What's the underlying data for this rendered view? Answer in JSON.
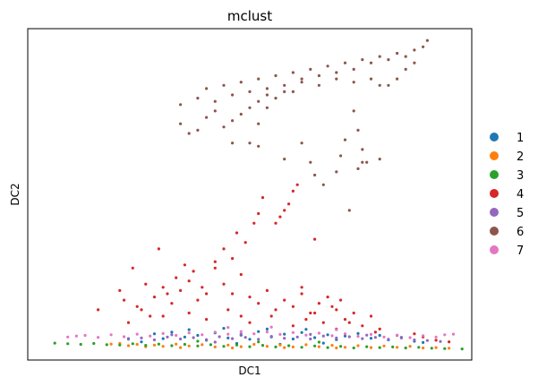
{
  "chart_data": {
    "type": "scatter",
    "title": "mclust",
    "xlabel": "DC1",
    "ylabel": "DC2",
    "xlim": [
      0,
      100
    ],
    "ylim": [
      0,
      100
    ],
    "grid": false,
    "ticks": false,
    "legend": {
      "position": "right",
      "entries": [
        {
          "label": "1",
          "color": "#1f77b4"
        },
        {
          "label": "2",
          "color": "#ff7f0e"
        },
        {
          "label": "3",
          "color": "#2ca02c"
        },
        {
          "label": "4",
          "color": "#d62728"
        },
        {
          "label": "5",
          "color": "#9467bd"
        },
        {
          "label": "6",
          "color": "#8c564b"
        },
        {
          "label": "7",
          "color": "#e377c2"
        }
      ]
    },
    "series": [
      {
        "name": "1",
        "color": "#1f77b4",
        "points": [
          [
            28,
            6.5
          ],
          [
            30,
            5
          ],
          [
            32,
            7
          ],
          [
            35,
            5.5
          ],
          [
            38,
            6
          ],
          [
            40,
            4.5
          ],
          [
            42,
            6.8
          ],
          [
            45,
            5.2
          ],
          [
            48,
            6.1
          ],
          [
            50,
            4.8
          ],
          [
            52,
            7.2
          ],
          [
            55,
            5.5
          ],
          [
            58,
            6.4
          ],
          [
            60,
            4.9
          ],
          [
            62,
            6.9
          ],
          [
            65,
            5.3
          ],
          [
            68,
            6.2
          ],
          [
            70,
            4.7
          ],
          [
            72,
            5.8
          ],
          [
            75,
            6.6
          ],
          [
            78,
            5.1
          ],
          [
            80,
            6
          ],
          [
            82,
            4.6
          ],
          [
            85,
            5.4
          ],
          [
            88,
            4.2
          ],
          [
            90,
            3.8
          ],
          [
            25,
            4
          ],
          [
            22,
            5
          ],
          [
            36,
            7.8
          ],
          [
            44,
            8.2
          ],
          [
            54,
            8
          ],
          [
            63,
            7.9
          ],
          [
            47,
            3.5
          ],
          [
            57,
            3.2
          ],
          [
            67,
            3.6
          ]
        ]
      },
      {
        "name": "2",
        "color": "#ff7f0e",
        "points": [
          [
            20,
            3.5
          ],
          [
            22,
            2.8
          ],
          [
            24,
            3.2
          ],
          [
            26,
            2.5
          ],
          [
            28,
            3
          ],
          [
            30,
            2.6
          ],
          [
            33,
            3.3
          ],
          [
            36,
            2.7
          ],
          [
            39,
            3.1
          ],
          [
            42,
            2.4
          ],
          [
            45,
            3
          ],
          [
            48,
            2.5
          ],
          [
            51,
            3.2
          ],
          [
            54,
            2.6
          ],
          [
            57,
            3
          ],
          [
            60,
            2.4
          ],
          [
            63,
            3.1
          ],
          [
            66,
            2.5
          ],
          [
            69,
            2.9
          ],
          [
            72,
            2.3
          ],
          [
            75,
            2.8
          ],
          [
            78,
            2.2
          ],
          [
            81,
            2.7
          ],
          [
            84,
            2.3
          ],
          [
            87,
            2.6
          ],
          [
            90,
            2.1
          ],
          [
            93,
            2.2
          ],
          [
            96,
            2
          ],
          [
            18,
            3.3
          ],
          [
            34,
            2.2
          ],
          [
            46,
            2.1
          ],
          [
            58,
            2.2
          ],
          [
            70,
            2.1
          ]
        ]
      },
      {
        "name": "3",
        "color": "#2ca02c",
        "points": [
          [
            5,
            3.6
          ],
          [
            8,
            3.4
          ],
          [
            11,
            3.2
          ],
          [
            14,
            3.5
          ],
          [
            17,
            3.1
          ],
          [
            20,
            3
          ],
          [
            23,
            3.4
          ],
          [
            26,
            2.9
          ],
          [
            29,
            3.3
          ],
          [
            32,
            2.8
          ],
          [
            35,
            3.2
          ],
          [
            38,
            2.7
          ],
          [
            41,
            3.1
          ],
          [
            44,
            2.6
          ],
          [
            47,
            3
          ],
          [
            50,
            2.5
          ],
          [
            53,
            2.9
          ],
          [
            56,
            2.4
          ],
          [
            59,
            2.8
          ],
          [
            62,
            2.3
          ],
          [
            65,
            2.7
          ],
          [
            68,
            2.2
          ],
          [
            71,
            2.6
          ],
          [
            74,
            2.1
          ],
          [
            77,
            2.5
          ],
          [
            80,
            2.2
          ],
          [
            83,
            2.4
          ],
          [
            86,
            2.1
          ],
          [
            89,
            2.3
          ],
          [
            92,
            2
          ],
          [
            95,
            1.9
          ],
          [
            99,
            1.8
          ],
          [
            38,
            4.2
          ],
          [
            52,
            4
          ],
          [
            66,
            3.9
          ]
        ]
      },
      {
        "name": "4",
        "color": "#d62728",
        "points": [
          [
            21,
            17
          ],
          [
            24,
            15
          ],
          [
            26,
            22
          ],
          [
            28,
            18
          ],
          [
            30,
            21
          ],
          [
            32,
            16
          ],
          [
            34,
            20
          ],
          [
            36,
            23
          ],
          [
            38,
            17
          ],
          [
            40,
            19
          ],
          [
            42,
            27
          ],
          [
            44,
            22
          ],
          [
            46,
            19
          ],
          [
            48,
            25
          ],
          [
            50,
            18
          ],
          [
            52,
            16
          ],
          [
            54,
            20
          ],
          [
            56,
            14
          ],
          [
            58,
            17
          ],
          [
            60,
            15
          ],
          [
            62,
            19
          ],
          [
            64,
            13
          ],
          [
            66,
            16
          ],
          [
            68,
            18
          ],
          [
            70,
            14
          ],
          [
            72,
            11
          ],
          [
            74,
            13
          ],
          [
            76,
            9
          ],
          [
            78,
            12
          ],
          [
            80,
            8
          ],
          [
            22,
            10
          ],
          [
            30,
            12
          ],
          [
            40,
            11
          ],
          [
            50,
            10
          ],
          [
            60,
            9
          ],
          [
            70,
            8
          ],
          [
            44,
            33
          ],
          [
            47,
            38
          ],
          [
            49,
            35
          ],
          [
            56,
            41
          ],
          [
            57,
            43
          ],
          [
            58,
            45
          ],
          [
            59,
            47
          ],
          [
            60,
            51
          ],
          [
            61,
            53
          ],
          [
            52,
            44
          ],
          [
            53,
            49
          ],
          [
            51,
            41
          ],
          [
            65,
            36
          ],
          [
            25,
            14
          ],
          [
            20,
            20
          ],
          [
            27,
            12
          ],
          [
            33,
            24
          ],
          [
            35,
            28
          ],
          [
            37,
            26
          ],
          [
            45,
            14
          ],
          [
            55,
            12
          ],
          [
            63,
            11
          ],
          [
            67,
            10
          ],
          [
            73,
            10
          ],
          [
            79,
            7
          ],
          [
            84,
            6
          ],
          [
            88,
            6.5
          ],
          [
            90,
            5.5
          ],
          [
            93,
            4.5
          ],
          [
            96,
            4
          ],
          [
            15,
            14
          ],
          [
            23,
            27
          ],
          [
            29,
            33
          ],
          [
            42,
            29
          ],
          [
            46,
            30
          ],
          [
            39,
            21
          ],
          [
            31,
            19
          ],
          [
            36,
            13
          ],
          [
            48,
            12
          ],
          [
            62,
            21
          ],
          [
            65,
            13
          ],
          [
            71,
            17
          ],
          [
            69,
            15
          ]
        ]
      },
      {
        "name": "5",
        "color": "#9467bd",
        "points": [
          [
            22,
            4.8
          ],
          [
            25,
            5.2
          ],
          [
            28,
            4.6
          ],
          [
            31,
            5.5
          ],
          [
            34,
            4.9
          ],
          [
            37,
            5.3
          ],
          [
            40,
            4.7
          ],
          [
            43,
            5.6
          ],
          [
            46,
            5
          ],
          [
            49,
            5.4
          ],
          [
            52,
            4.8
          ],
          [
            55,
            5.7
          ],
          [
            58,
            5.1
          ],
          [
            61,
            5.5
          ],
          [
            64,
            4.9
          ],
          [
            67,
            5.8
          ],
          [
            70,
            5.2
          ],
          [
            73,
            5.6
          ],
          [
            76,
            5
          ],
          [
            79,
            5.4
          ],
          [
            82,
            4.8
          ],
          [
            85,
            5.2
          ],
          [
            88,
            4.6
          ],
          [
            91,
            4.4
          ],
          [
            94,
            4.1
          ],
          [
            32,
            6.2
          ],
          [
            48,
            6.4
          ],
          [
            64,
            6.3
          ],
          [
            77,
            6.1
          ],
          [
            42,
            3.9
          ]
        ]
      },
      {
        "name": "6",
        "color": "#8c564b",
        "points": [
          [
            34,
            78
          ],
          [
            38,
            80
          ],
          [
            40,
            83
          ],
          [
            42,
            79
          ],
          [
            44,
            84
          ],
          [
            46,
            81
          ],
          [
            48,
            85
          ],
          [
            50,
            82
          ],
          [
            52,
            86
          ],
          [
            54,
            83
          ],
          [
            56,
            87
          ],
          [
            58,
            84
          ],
          [
            60,
            88
          ],
          [
            62,
            86
          ],
          [
            64,
            89
          ],
          [
            66,
            87
          ],
          [
            68,
            90
          ],
          [
            70,
            88
          ],
          [
            72,
            91
          ],
          [
            74,
            89
          ],
          [
            76,
            92
          ],
          [
            78,
            91
          ],
          [
            80,
            93
          ],
          [
            82,
            92
          ],
          [
            84,
            94
          ],
          [
            86,
            93
          ],
          [
            88,
            95
          ],
          [
            90,
            96
          ],
          [
            34,
            72
          ],
          [
            38,
            70
          ],
          [
            40,
            74
          ],
          [
            42,
            76
          ],
          [
            46,
            73
          ],
          [
            48,
            75
          ],
          [
            50,
            77
          ],
          [
            52,
            79
          ],
          [
            54,
            81
          ],
          [
            56,
            80
          ],
          [
            58,
            82
          ],
          [
            44,
            71
          ],
          [
            36,
            69
          ],
          [
            52,
            72
          ],
          [
            62,
            85
          ],
          [
            66,
            84
          ],
          [
            70,
            86
          ],
          [
            74,
            85
          ],
          [
            78,
            86
          ],
          [
            80,
            84
          ],
          [
            82,
            84
          ],
          [
            84,
            86
          ],
          [
            86,
            89
          ],
          [
            88,
            91
          ],
          [
            91,
            98
          ],
          [
            60,
            82
          ],
          [
            54,
            77
          ],
          [
            46,
            66
          ],
          [
            50,
            66
          ],
          [
            52,
            65
          ],
          [
            58,
            61
          ],
          [
            64,
            60
          ],
          [
            74,
            76
          ],
          [
            75,
            70
          ],
          [
            76,
            64
          ],
          [
            76,
            60
          ],
          [
            72,
            67
          ],
          [
            65,
            56
          ],
          [
            67,
            53
          ],
          [
            70,
            57
          ],
          [
            73,
            45
          ],
          [
            75,
            58
          ],
          [
            77,
            60
          ],
          [
            80,
            61
          ],
          [
            62,
            66
          ],
          [
            71,
            62
          ]
        ]
      },
      {
        "name": "7",
        "color": "#e377c2",
        "points": [
          [
            12,
            6
          ],
          [
            15,
            5.4
          ],
          [
            18,
            6.2
          ],
          [
            21,
            5.6
          ],
          [
            24,
            6.4
          ],
          [
            27,
            5.8
          ],
          [
            30,
            6.6
          ],
          [
            33,
            6
          ],
          [
            36,
            6.8
          ],
          [
            39,
            6.2
          ],
          [
            42,
            7
          ],
          [
            45,
            6.4
          ],
          [
            48,
            7.2
          ],
          [
            51,
            6.5
          ],
          [
            54,
            7.1
          ],
          [
            57,
            6.3
          ],
          [
            60,
            6.9
          ],
          [
            63,
            6.1
          ],
          [
            66,
            6.7
          ],
          [
            69,
            5.9
          ],
          [
            72,
            6.5
          ],
          [
            75,
            5.7
          ],
          [
            78,
            6.3
          ],
          [
            81,
            5.5
          ],
          [
            84,
            6.1
          ],
          [
            87,
            5.3
          ],
          [
            90,
            5.9
          ],
          [
            93,
            5.5
          ],
          [
            95,
            6.2
          ],
          [
            97,
            6.4
          ],
          [
            10,
            5.8
          ],
          [
            8,
            5.5
          ],
          [
            45,
            8.5
          ],
          [
            55,
            8.6
          ],
          [
            70,
            7.8
          ]
        ]
      }
    ]
  }
}
